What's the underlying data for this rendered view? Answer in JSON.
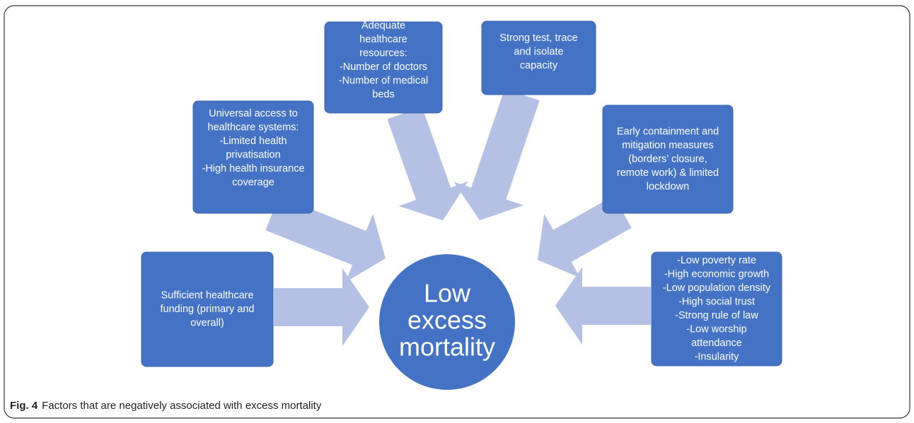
{
  "nodes": [
    {
      "lines": [
        "Sufficient healthcare",
        "funding (primary and",
        "overall)"
      ]
    },
    {
      "lines": [
        "Universal access to",
        "healthcare systems:",
        "-Limited health",
        "privatisation",
        "-High health insurance",
        "coverage"
      ]
    },
    {
      "lines": [
        "Adequate",
        "healthcare",
        "resources:",
        "-Number of doctors",
        "-Number of medical",
        "beds"
      ]
    },
    {
      "lines": [
        "Strong test, trace",
        "and isolate",
        "capacity"
      ]
    },
    {
      "lines": [
        "Early containment and",
        "mitigation measures",
        "(borders’ closure,",
        "remote work) & limited",
        "lockdown"
      ]
    },
    {
      "lines": [
        "-Low poverty rate",
        "-High economic growth",
        "-Low population density",
        "-High social trust",
        "-Strong rule of law",
        "-Low worship",
        "attendance",
        "-Insularity"
      ]
    }
  ],
  "center": {
    "lines": [
      "Low",
      "excess",
      "mortality"
    ]
  },
  "caption": {
    "label": "Fig. 4",
    "text": "Factors that are negatively associated with excess mortality"
  }
}
